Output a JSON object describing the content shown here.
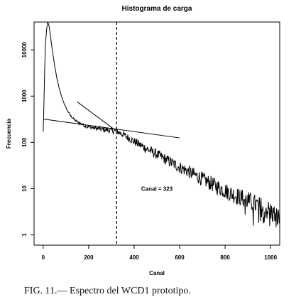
{
  "chart_data": {
    "type": "line",
    "title": "Histograma de carga",
    "xlabel": "Canal",
    "ylabel": "Frecuencia",
    "x_scale": "linear",
    "y_scale": "log",
    "xlim": [
      -40,
      1040
    ],
    "ylim": [
      0.6,
      40000
    ],
    "x_ticks": [
      0,
      200,
      400,
      600,
      800,
      1000
    ],
    "x_tick_labels": [
      "0",
      "200",
      "400",
      "600",
      "800",
      "1000"
    ],
    "y_ticks": [
      1,
      10,
      100,
      1000,
      10000
    ],
    "y_tick_labels": [
      "1",
      "10",
      "100",
      "1000",
      "10000"
    ],
    "grid": false,
    "series": [
      {
        "style": "noisy-line",
        "x": [
          0,
          2,
          4,
          6,
          8,
          10,
          15,
          20,
          25,
          30,
          40,
          50,
          60,
          70,
          80,
          90,
          100,
          120,
          140,
          160,
          180,
          200,
          250,
          300,
          323,
          350,
          400,
          450,
          500,
          550,
          600,
          650,
          700,
          750,
          800,
          850,
          900,
          950,
          1000,
          1020,
          1040
        ],
        "y": [
          170,
          400,
          1000,
          2600,
          6500,
          13000,
          28000,
          39000,
          35000,
          24000,
          10000,
          4700,
          2450,
          1500,
          1000,
          740,
          560,
          380,
          300,
          260,
          235,
          215,
          195,
          180,
          175,
          150,
          105,
          75,
          55,
          40,
          29,
          22,
          16,
          12,
          9,
          7,
          5.5,
          4.2,
          3.2,
          2.6,
          2.2
        ]
      },
      {
        "style": "straight-line",
        "x": [
          0,
          600
        ],
        "y": [
          320,
          125
        ]
      },
      {
        "style": "straight-line",
        "x": [
          150,
          323
        ],
        "y": [
          750,
          175
        ]
      },
      {
        "style": "vertical-dashed",
        "x": [
          323,
          323
        ]
      }
    ],
    "annotations": [
      {
        "text": "Canal = 323",
        "x": 500,
        "y": 10
      }
    ]
  },
  "caption": "FIG. 11.— Espectro del WCD1 prototipo."
}
